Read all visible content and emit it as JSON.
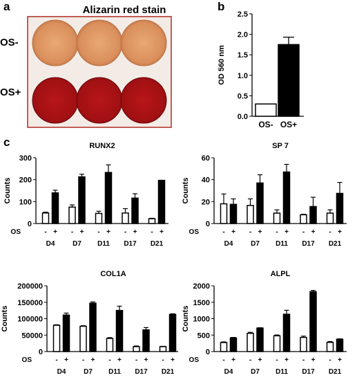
{
  "panel_labels": {
    "a": "a",
    "b": "b",
    "c": "c"
  },
  "plate": {
    "title": "Alizarin red stain",
    "row_labels": [
      "OS-",
      "OS+"
    ],
    "colors": {
      "os_minus_well": "#d98f5b",
      "os_plus_well": "#a01012",
      "frame": "#b02a20"
    }
  },
  "chart_data": [
    {
      "id": "b",
      "type": "bar",
      "categories": [
        "OS-",
        "OS+"
      ],
      "values": [
        0.3,
        1.75
      ],
      "errors": [
        0.0,
        0.18
      ],
      "fills": [
        "#ffffff",
        "#000000"
      ],
      "ylabel": "OD 560 nm",
      "ylim": [
        0,
        2.5
      ],
      "yticks": [
        "0.0",
        "0.5",
        "1.0",
        "1.5",
        "2.0",
        "2.5"
      ]
    },
    {
      "id": "runx2",
      "type": "bar",
      "title": "RUNX2",
      "ylabel": "Counts",
      "ylim": [
        0,
        300
      ],
      "yticks": [
        "0",
        "100",
        "200",
        "300"
      ],
      "groups": [
        "D4",
        "D7",
        "D11",
        "D17",
        "D21"
      ],
      "os_label": "OS",
      "os_signs": [
        "-",
        "+"
      ],
      "os_minus": [
        48,
        75,
        46,
        48,
        22
      ],
      "os_minus_err": [
        4,
        10,
        10,
        20,
        2
      ],
      "os_plus": [
        140,
        213,
        233,
        116,
        197
      ],
      "os_plus_err": [
        12,
        12,
        35,
        20,
        0
      ]
    },
    {
      "id": "sp7",
      "type": "bar",
      "title": "SP 7",
      "ylabel": "Counts",
      "ylim": [
        0,
        60
      ],
      "yticks": [
        "0",
        "20",
        "40",
        "60"
      ],
      "groups": [
        "D4",
        "D7",
        "D11",
        "D17",
        "D21"
      ],
      "os_label": "OS",
      "os_signs": [
        "-",
        "+"
      ],
      "os_minus": [
        18,
        16.5,
        9.5,
        8,
        9.5
      ],
      "os_minus_err": [
        9,
        6,
        3,
        0.5,
        3
      ],
      "os_plus": [
        17.5,
        37,
        47,
        15.5,
        27.5
      ],
      "os_plus_err": [
        5,
        7.5,
        7,
        8.5,
        10
      ]
    },
    {
      "id": "col1a",
      "type": "bar",
      "title": "COL1A",
      "ylabel": "Counts",
      "ylim": [
        0,
        200000
      ],
      "yticks": [
        "0",
        "50000",
        "100000",
        "150000",
        "200000"
      ],
      "groups": [
        "D4",
        "D7",
        "D11",
        "D17",
        "D21"
      ],
      "os_label": "OS",
      "os_signs": [
        "-",
        "+"
      ],
      "os_minus": [
        80000,
        77000,
        40000,
        15000,
        15000
      ],
      "os_minus_err": [
        1500,
        1500,
        2500,
        2000,
        1000
      ],
      "os_plus": [
        111000,
        147000,
        125000,
        66000,
        113000
      ],
      "os_plus_err": [
        6000,
        4000,
        13000,
        7000,
        2000
      ]
    },
    {
      "id": "alpl",
      "type": "bar",
      "title": "ALPL",
      "ylabel": "Counts",
      "ylim": [
        0,
        2000
      ],
      "yticks": [
        "0",
        "500",
        "1000",
        "1500",
        "2000"
      ],
      "groups": [
        "D4",
        "D7",
        "D11",
        "D17",
        "D21"
      ],
      "os_label": "OS",
      "os_signs": [
        "-",
        "+"
      ],
      "os_minus": [
        275,
        555,
        480,
        430,
        280
      ],
      "os_minus_err": [
        20,
        30,
        25,
        40,
        25
      ],
      "os_plus": [
        415,
        715,
        1135,
        1820,
        375
      ],
      "os_plus_err": [
        15,
        10,
        120,
        40,
        12
      ]
    }
  ]
}
